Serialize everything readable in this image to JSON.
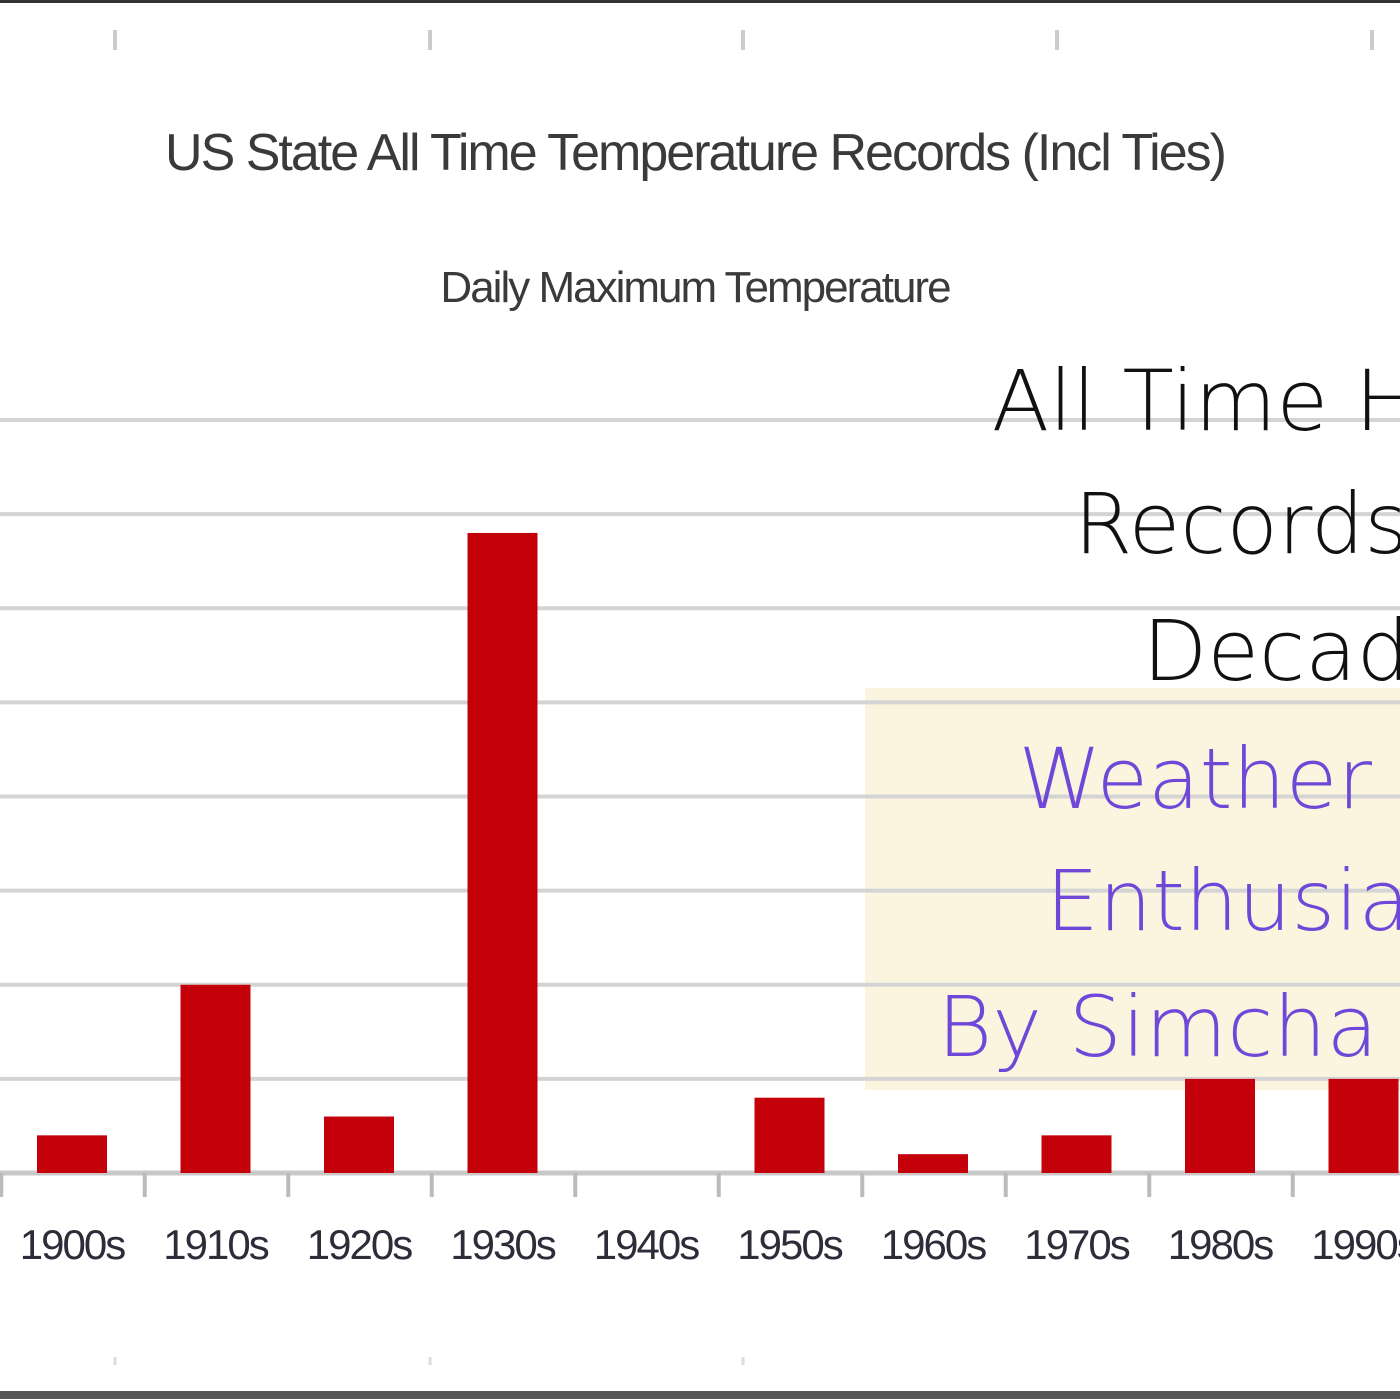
{
  "chart_data": {
    "type": "bar",
    "title": "US State All Time Temperature Records (Incl Ties)",
    "subtitle": "Daily Maximum Temperature",
    "categories": [
      "1900s",
      "1910s",
      "1920s",
      "1930s",
      "1940s",
      "1950s",
      "1960s",
      "1970s",
      "1980s",
      "1990s"
    ],
    "values": [
      2,
      10,
      3,
      34,
      0,
      4,
      1,
      2,
      5,
      5
    ],
    "ylim": [
      0,
      40
    ],
    "ystep": 5,
    "grid": true,
    "xlabel": "",
    "ylabel": "",
    "bar_color": "#c4000b"
  },
  "overlay": {
    "heading_lines": [
      "All Time H",
      "Records",
      "Decad"
    ],
    "credit_lines": [
      "Weather",
      "Enthusia",
      "By Simcha"
    ],
    "heading_color": "#111111",
    "credit_color": "#7048d8",
    "credit_background": "#fbf5e0"
  }
}
